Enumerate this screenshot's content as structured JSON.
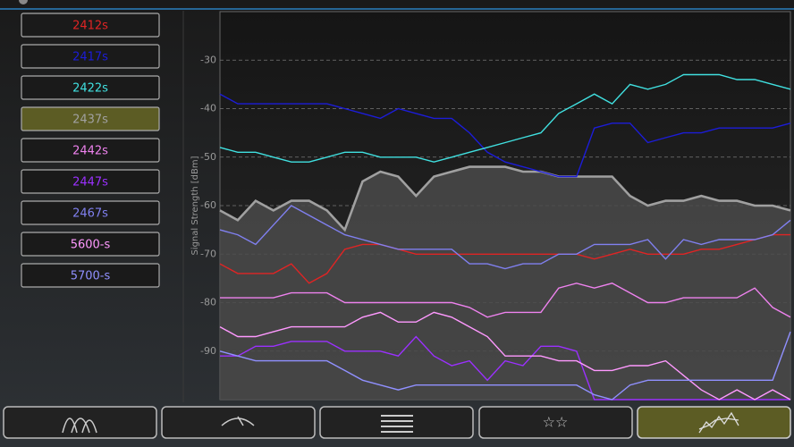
{
  "chart_data": {
    "type": "line",
    "y_label": "Signal Strength [dBm]",
    "ylim": [
      -100,
      -20
    ],
    "yticks": [
      -30,
      -40,
      -50,
      -60,
      -70,
      -80,
      -90
    ],
    "grid": true,
    "series": [
      {
        "name": "2412s",
        "color": "#e02424",
        "values": [
          -72,
          -74,
          -74,
          -74,
          -72,
          -76,
          -74,
          -69,
          -68,
          -68,
          -69,
          -70,
          -70,
          -70,
          -70,
          -70,
          -70,
          -70,
          -70,
          -70,
          -70,
          -71,
          -70,
          -69,
          -70,
          -70,
          -70,
          -69,
          -69,
          -68,
          -67,
          -66,
          -66
        ]
      },
      {
        "name": "2417s",
        "color": "#1c1cd8",
        "values": [
          -37,
          -39,
          -39,
          -39,
          -39,
          -39,
          -39,
          -40,
          -41,
          -42,
          -40,
          -41,
          -42,
          -42,
          -45,
          -49,
          -51,
          -52,
          -53,
          -54,
          -54,
          -44,
          -43,
          -43,
          -47,
          -46,
          -45,
          -45,
          -44,
          -44,
          -44,
          -44,
          -43
        ]
      },
      {
        "name": "2422s",
        "color": "#40e0e0",
        "values": [
          -48,
          -49,
          -49,
          -50,
          -51,
          -51,
          -50,
          -49,
          -49,
          -50,
          -50,
          -50,
          -51,
          -50,
          -49,
          -48,
          -47,
          -46,
          -45,
          -41,
          -39,
          -37,
          -39,
          -35,
          -36,
          -35,
          -33,
          -33,
          -33,
          -34,
          -34,
          -35,
          -36
        ]
      },
      {
        "name": "2437s",
        "color": "#a0a0a0",
        "filled": true,
        "values": [
          -61,
          -63,
          -59,
          -61,
          -59,
          -59,
          -61,
          -65,
          -55,
          -53,
          -54,
          -58,
          -54,
          -53,
          -52,
          -52,
          -52,
          -53,
          -53,
          -54,
          -54,
          -54,
          -54,
          -58,
          -60,
          -59,
          -59,
          -58,
          -59,
          -59,
          -60,
          -60,
          -61
        ]
      },
      {
        "name": "2442s",
        "color": "#ee82ee",
        "values": [
          -79,
          -79,
          -79,
          -79,
          -78,
          -78,
          -78,
          -80,
          -80,
          -80,
          -80,
          -80,
          -80,
          -80,
          -81,
          -83,
          -82,
          -82,
          -82,
          -77,
          -76,
          -77,
          -76,
          -78,
          -80,
          -80,
          -79,
          -79,
          -79,
          -79,
          -77,
          -81,
          -83
        ]
      },
      {
        "name": "2447s",
        "color": "#9b30ff",
        "values": [
          -91,
          -91,
          -89,
          -89,
          -88,
          -88,
          -88,
          -90,
          -90,
          -90,
          -91,
          -87,
          -91,
          -93,
          -92,
          -96,
          -92,
          -93,
          -89,
          -89,
          -90,
          -100,
          -100,
          -100,
          -100,
          -100,
          -100,
          -100,
          -100,
          -100,
          -100,
          -100,
          -100
        ]
      },
      {
        "name": "2467s",
        "color": "#8080f0",
        "values": [
          -65,
          -66,
          -68,
          -64,
          -60,
          -62,
          -64,
          -66,
          -67,
          -68,
          -69,
          -69,
          -69,
          -69,
          -72,
          -72,
          -73,
          -72,
          -72,
          -70,
          -70,
          -68,
          -68,
          -68,
          -67,
          -71,
          -67,
          -68,
          -67,
          -67,
          -67,
          -66,
          -63
        ]
      },
      {
        "name": "5600-s",
        "color": "#ff99ff",
        "values": [
          -85,
          -87,
          -87,
          -86,
          -85,
          -85,
          -85,
          -85,
          -83,
          -82,
          -84,
          -84,
          -82,
          -83,
          -85,
          -87,
          -91,
          -91,
          -91,
          -92,
          -92,
          -94,
          -94,
          -93,
          -93,
          -92,
          -95,
          -98,
          -100,
          -98,
          -100,
          -98,
          -100
        ]
      },
      {
        "name": "5700-s",
        "color": "#9090ff",
        "values": [
          -90,
          -91,
          -92,
          -92,
          -92,
          -92,
          -92,
          -94,
          -96,
          -97,
          -98,
          -97,
          -97,
          -97,
          -97,
          -97,
          -97,
          -97,
          -97,
          -97,
          -97,
          -99,
          -100,
          -97,
          -96,
          -96,
          -96,
          -96,
          -96,
          -96,
          -96,
          -96,
          -86
        ]
      }
    ]
  }
}
